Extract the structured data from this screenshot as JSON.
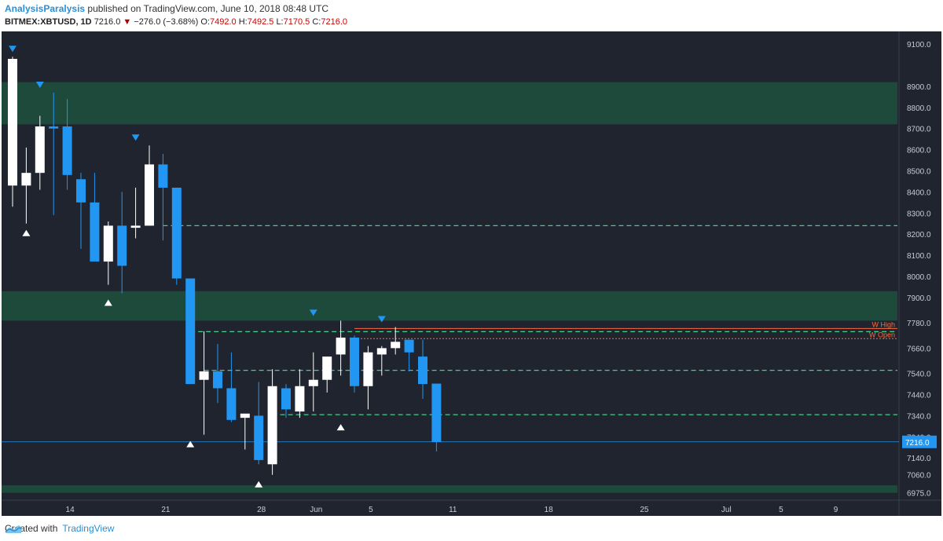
{
  "header": {
    "author": "AnalysisParalysis",
    "published_text": "published on TradingView.com, June 10, 2018 08:48 UTC",
    "symbol": "BITMEX:XBTUSD, 1D",
    "last": "7216.0",
    "change_arrow": "▼",
    "change": "−276.0 (−3.68%)",
    "o_label": "O:",
    "o_val": "7492.0",
    "h_label": "H:",
    "h_val": "7492.5",
    "l_label": "L:",
    "l_val": "7170.5",
    "c_label": "C:",
    "c_val": "7216.0"
  },
  "footer": {
    "created_with": "Created with",
    "brand": "TradingView"
  },
  "chart_data": {
    "type": "candlestick",
    "x_labels": [
      "14",
      "21",
      "28",
      "Jun",
      "5",
      "11",
      "18",
      "25",
      "Jul",
      "5",
      "9"
    ],
    "y_tick_labels": [
      "9100.0",
      "8900.0",
      "8800.0",
      "8700.0",
      "8600.0",
      "8500.0",
      "8400.0",
      "8300.0",
      "8200.0",
      "8100.0",
      "8000.0",
      "7900.0",
      "7780.0",
      "7660.0",
      "7540.0",
      "7440.0",
      "7340.0",
      "7240.0",
      "7140.0",
      "7060.0",
      "6975.0"
    ],
    "ylim": [
      6940,
      9160
    ],
    "last_price_label": "7216.0",
    "last_price": 7216.0,
    "colors": {
      "up": "#ffffff",
      "down": "#2196f3",
      "zone": "#1e4a3c",
      "level": "#3fd18a",
      "w_high": "#ff6a3a",
      "w_open": "#ff6a3a",
      "price_line": "#2196f3",
      "background": "#1f242e"
    },
    "zones": [
      {
        "from": 8720,
        "to": 8920
      },
      {
        "from": 7790,
        "to": 7930
      },
      {
        "from": 6975,
        "to": 7010
      }
    ],
    "levels": [
      {
        "price": 8240,
        "from_index": 11
      },
      {
        "price": 7738,
        "from_index": 13
      },
      {
        "price": 7555,
        "from_index": 14
      },
      {
        "price": 7345,
        "from_index": 19
      }
    ],
    "weekly_lines": [
      {
        "label": "W High",
        "price": 7753,
        "from_index": 25
      },
      {
        "label": "W Open",
        "price": 7705,
        "from_index": 25
      }
    ],
    "candles": [
      {
        "o": 8430,
        "h": 9040,
        "l": 8330,
        "c": 9030
      },
      {
        "o": 8430,
        "h": 8610,
        "l": 8250,
        "c": 8490
      },
      {
        "o": 8490,
        "h": 8760,
        "l": 8410,
        "c": 8710
      },
      {
        "o": 8710,
        "h": 8870,
        "l": 8290,
        "c": 8700
      },
      {
        "o": 8710,
        "h": 8840,
        "l": 8410,
        "c": 8480
      },
      {
        "o": 8460,
        "h": 8490,
        "l": 8130,
        "c": 8350
      },
      {
        "o": 8350,
        "h": 8490,
        "l": 8080,
        "c": 8070
      },
      {
        "o": 8070,
        "h": 8260,
        "l": 7960,
        "c": 8240
      },
      {
        "o": 8240,
        "h": 8400,
        "l": 7920,
        "c": 8050
      },
      {
        "o": 8230,
        "h": 8420,
        "l": 8180,
        "c": 8240
      },
      {
        "o": 8240,
        "h": 8620,
        "l": 8240,
        "c": 8530
      },
      {
        "o": 8530,
        "h": 8580,
        "l": 8170,
        "c": 8420
      },
      {
        "o": 8420,
        "h": 8410,
        "l": 7960,
        "c": 7990
      },
      {
        "o": 7990,
        "h": 7990,
        "l": 7490,
        "c": 7490
      },
      {
        "o": 7510,
        "h": 7740,
        "l": 7250,
        "c": 7550
      },
      {
        "o": 7550,
        "h": 7680,
        "l": 7400,
        "c": 7470
      },
      {
        "o": 7470,
        "h": 7640,
        "l": 7310,
        "c": 7320
      },
      {
        "o": 7330,
        "h": 7330,
        "l": 7180,
        "c": 7350
      },
      {
        "o": 7340,
        "h": 7500,
        "l": 7110,
        "c": 7130
      },
      {
        "o": 7110,
        "h": 7560,
        "l": 7060,
        "c": 7480
      },
      {
        "o": 7470,
        "h": 7490,
        "l": 7330,
        "c": 7370
      },
      {
        "o": 7360,
        "h": 7560,
        "l": 7330,
        "c": 7480
      },
      {
        "o": 7480,
        "h": 7640,
        "l": 7360,
        "c": 7510
      },
      {
        "o": 7510,
        "h": 7620,
        "l": 7450,
        "c": 7620
      },
      {
        "o": 7630,
        "h": 7790,
        "l": 7530,
        "c": 7710
      },
      {
        "o": 7710,
        "h": 7720,
        "l": 7450,
        "c": 7480
      },
      {
        "o": 7480,
        "h": 7670,
        "l": 7370,
        "c": 7640
      },
      {
        "o": 7630,
        "h": 7670,
        "l": 7530,
        "c": 7660
      },
      {
        "o": 7660,
        "h": 7760,
        "l": 7630,
        "c": 7690
      },
      {
        "o": 7700,
        "h": 7700,
        "l": 7550,
        "c": 7640
      },
      {
        "o": 7620,
        "h": 7700,
        "l": 7420,
        "c": 7490
      },
      {
        "o": 7492,
        "h": 7492.5,
        "l": 7170.5,
        "c": 7216
      }
    ],
    "markers": [
      {
        "index": 0,
        "type": "down",
        "price": 9040
      },
      {
        "index": 1,
        "type": "up",
        "price": 8250
      },
      {
        "index": 2,
        "type": "down",
        "price": 8870
      },
      {
        "index": 7,
        "type": "up",
        "price": 7920
      },
      {
        "index": 9,
        "type": "down",
        "price": 8620
      },
      {
        "index": 13,
        "type": "up",
        "price": 7250
      },
      {
        "index": 18,
        "type": "up",
        "price": 7060
      },
      {
        "index": 22,
        "type": "down",
        "price": 7790
      },
      {
        "index": 24,
        "type": "up",
        "price": 7330
      },
      {
        "index": 27,
        "type": "down",
        "price": 7760
      }
    ]
  }
}
